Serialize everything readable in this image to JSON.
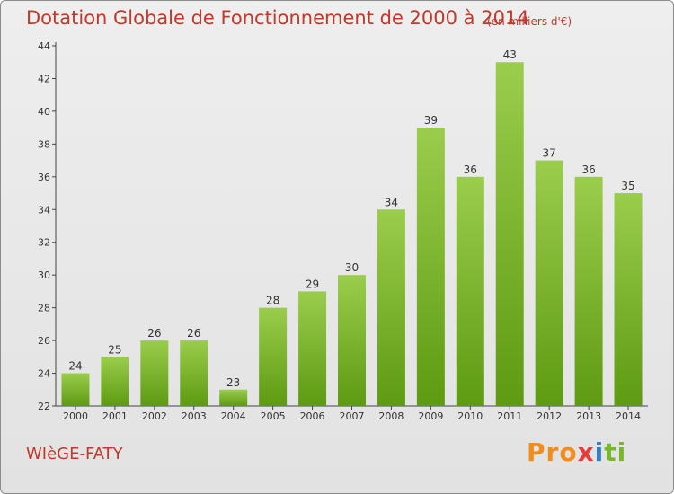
{
  "header": {
    "title": "Dotation Globale de Fonctionnement de 2000 à 2014",
    "subtitle": "(en milliers d'€)"
  },
  "footer": {
    "commune": "WIèGE-FATY",
    "brand": [
      "Pro",
      "x",
      "i",
      "ti"
    ]
  },
  "colors": {
    "title": "#c0392b",
    "bar_light": "#9acd4c",
    "bar_dark": "#5e9a12"
  },
  "chart_data": {
    "type": "bar",
    "title": "Dotation Globale de Fonctionnement de 2000 à 2014",
    "subtitle": "(en milliers d'€)",
    "categories": [
      "2000",
      "2001",
      "2002",
      "2003",
      "2004",
      "2005",
      "2006",
      "2007",
      "2008",
      "2009",
      "2010",
      "2011",
      "2012",
      "2013",
      "2014"
    ],
    "values": [
      24,
      25,
      26,
      26,
      23,
      28,
      29,
      30,
      34,
      39,
      36,
      43,
      37,
      36,
      35
    ],
    "ylim": [
      22,
      44
    ],
    "yticks": [
      22,
      24,
      26,
      28,
      30,
      32,
      34,
      36,
      38,
      40,
      42,
      44
    ],
    "grid": false,
    "xlabel": "",
    "ylabel": ""
  }
}
